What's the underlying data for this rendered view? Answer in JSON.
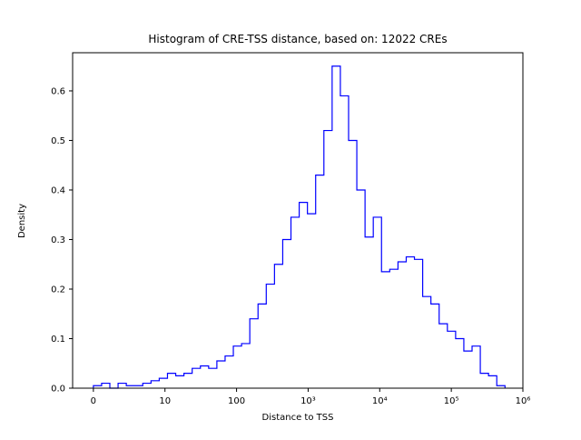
{
  "figure": {
    "background": "#ffffff"
  },
  "chart_data": {
    "type": "histogram",
    "title": "Histogram of CRE-TSS distance, based on: 12022 CREs",
    "xlabel": "Distance to TSS",
    "ylabel": "Density",
    "line_color": "#0000ff",
    "x_scale": "symlog (0 then log decades to 1e6)",
    "grid": false,
    "legend": false,
    "x_tick_labels": [
      "0",
      "10",
      "100",
      "10³",
      "10⁴",
      "10⁵",
      "10⁶"
    ],
    "x_ticks": [
      {
        "u": 0,
        "label": "0"
      },
      {
        "u": 1,
        "label": "10"
      },
      {
        "u": 2,
        "label": "100"
      },
      {
        "u": 3,
        "label": "10³"
      },
      {
        "u": 4,
        "label": "10⁴"
      },
      {
        "u": 5,
        "label": "10⁵"
      },
      {
        "u": 6,
        "label": "10⁶"
      }
    ],
    "y_ticks": [
      {
        "v": 0.0,
        "label": "0.0"
      },
      {
        "v": 0.1,
        "label": "0.1"
      },
      {
        "v": 0.2,
        "label": "0.2"
      },
      {
        "v": 0.3,
        "label": "0.3"
      },
      {
        "v": 0.4,
        "label": "0.4"
      },
      {
        "v": 0.5,
        "label": "0.5"
      },
      {
        "v": 0.6,
        "label": "0.6"
      }
    ],
    "xlim_u": [
      -0.29,
      6.0
    ],
    "ylim": [
      0,
      0.677
    ],
    "bin_edges_u": [
      0,
      0.115,
      0.23,
      0.345,
      0.46,
      0.575,
      0.69,
      0.805,
      0.92,
      1.035,
      1.15,
      1.265,
      1.38,
      1.495,
      1.61,
      1.725,
      1.84,
      1.955,
      2.07,
      2.185,
      2.3,
      2.415,
      2.53,
      2.645,
      2.76,
      2.875,
      2.99,
      3.105,
      3.22,
      3.335,
      3.45,
      3.565,
      3.68,
      3.795,
      3.91,
      4.025,
      4.14,
      4.255,
      4.37,
      4.485,
      4.6,
      4.715,
      4.83,
      4.945,
      5.06,
      5.175,
      5.29,
      5.405,
      5.52,
      5.635,
      5.75
    ],
    "densities": [
      0.005,
      0.01,
      0.0,
      0.01,
      0.005,
      0.005,
      0.01,
      0.015,
      0.02,
      0.03,
      0.025,
      0.03,
      0.04,
      0.045,
      0.04,
      0.055,
      0.065,
      0.085,
      0.09,
      0.14,
      0.17,
      0.21,
      0.25,
      0.3,
      0.345,
      0.375,
      0.352,
      0.43,
      0.52,
      0.65,
      0.59,
      0.5,
      0.4,
      0.305,
      0.345,
      0.235,
      0.24,
      0.255,
      0.265,
      0.26,
      0.185,
      0.17,
      0.13,
      0.115,
      0.1,
      0.075,
      0.085,
      0.03,
      0.025,
      0.005
    ],
    "peak_density": 0.65,
    "sample_count_in_title": "12022"
  }
}
